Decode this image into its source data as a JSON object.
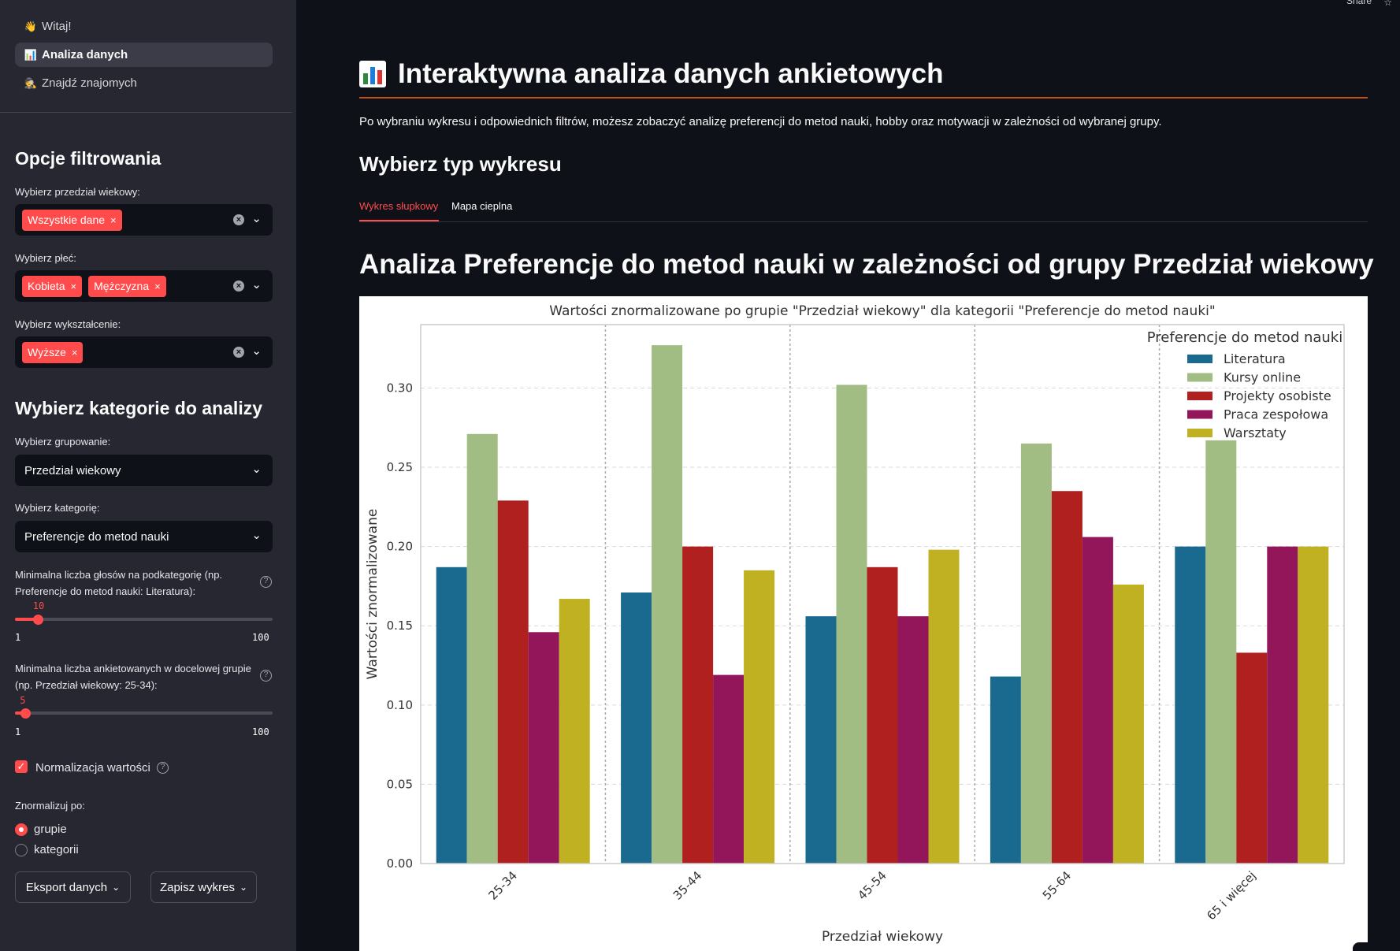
{
  "nav": {
    "items": [
      {
        "icon": "👋",
        "label": "Witaj!"
      },
      {
        "icon": "📊",
        "label": "Analiza danych"
      },
      {
        "icon": "🕵",
        "label": "Znajdź znajomych"
      }
    ]
  },
  "sidebar": {
    "filter_header": "Opcje filtrowania",
    "age_label": "Wybierz przedział wiekowy:",
    "age_tags": [
      "Wszystkie dane"
    ],
    "gender_label": "Wybierz płeć:",
    "gender_tags": [
      "Kobieta",
      "Mężczyzna"
    ],
    "edu_label": "Wybierz wykształcenie:",
    "edu_tags": [
      "Wyższe"
    ],
    "tag_remove": "×",
    "category_header": "Wybierz kategorie do analizy",
    "grouping_label": "Wybierz grupowanie:",
    "grouping_value": "Przedział wiekowy",
    "category_label": "Wybierz kategorię:",
    "category_value": "Preferencje do metod nauki",
    "slider1_label": "Minimalna liczba głosów na podkategorię (np. Preferencje do metod nauki: Literatura):",
    "slider1_value": "10",
    "slider1_fraction": 0.0909,
    "slider1_min": "1",
    "slider1_max": "100",
    "slider2_label": "Minimalna liczba ankietowanych w docelowej grupie (np. Przedział wiekowy: 25-34):",
    "slider2_value": "5",
    "slider2_fraction": 0.0404,
    "slider2_min": "1",
    "slider2_max": "100",
    "normalize_label": "Normalizacja wartości",
    "normalize_checked": true,
    "normalize_by_label": "Znormalizuj po:",
    "radio_options": [
      "grupie",
      "kategorii"
    ],
    "radio_selected": "grupie",
    "export_button": "Eksport danych",
    "save_button": "Zapisz wykres",
    "chevron": "⌄"
  },
  "main": {
    "share_label": "Share",
    "page_title": "Interaktywna analiza danych ankietowych",
    "intro": "Po wybraniu wykresu i odpowiednich filtrów, możesz zobaczyć analizę preferencji do metod nauki, hobby oraz motywacji w zależności od wybranej grupy.",
    "chart_type_header": "Wybierz typ wykresu",
    "tabs": [
      "Wykres słupkowy",
      "Mapa cieplna"
    ],
    "active_tab": "Wykres słupkowy",
    "analysis_title": "Analiza Preferencje do metod nauki w zależności od grupy Przedział wiekowy"
  },
  "colors": {
    "accent": "#ff4b4b",
    "title_rule": "#c35315",
    "sidebar_bg": "#262730",
    "main_bg": "#0e1117"
  },
  "chart_data": {
    "type": "bar",
    "title": "Wartości znormalizowane po grupie \"Przedział wiekowy\" dla kategorii \"Preferencje do metod nauki\"",
    "xlabel": "Przedział wiekowy",
    "ylabel": "Wartości znormalizowane",
    "legend_title": "Preferencje do metod nauki",
    "legend_position": "top-right",
    "grid": true,
    "ylim": [
      0,
      0.34
    ],
    "yticks": [
      "0.00",
      "0.05",
      "0.10",
      "0.15",
      "0.20",
      "0.25",
      "0.30"
    ],
    "categories": [
      "25-34",
      "35-44",
      "45-54",
      "55-64",
      "65 i więcej"
    ],
    "series": [
      {
        "name": "Literatura",
        "color": "#1a6a90",
        "values": [
          0.187,
          0.171,
          0.156,
          0.118,
          0.2
        ]
      },
      {
        "name": "Kursy online",
        "color": "#a1bd84",
        "values": [
          0.271,
          0.327,
          0.302,
          0.265,
          0.267
        ]
      },
      {
        "name": "Projekty osobiste",
        "color": "#b0201f",
        "values": [
          0.229,
          0.2,
          0.187,
          0.235,
          0.133
        ]
      },
      {
        "name": "Praca zespołowa",
        "color": "#921659",
        "values": [
          0.146,
          0.119,
          0.156,
          0.206,
          0.2
        ]
      },
      {
        "name": "Warsztaty",
        "color": "#bfb121",
        "values": [
          0.167,
          0.185,
          0.198,
          0.176,
          0.2
        ]
      }
    ]
  }
}
